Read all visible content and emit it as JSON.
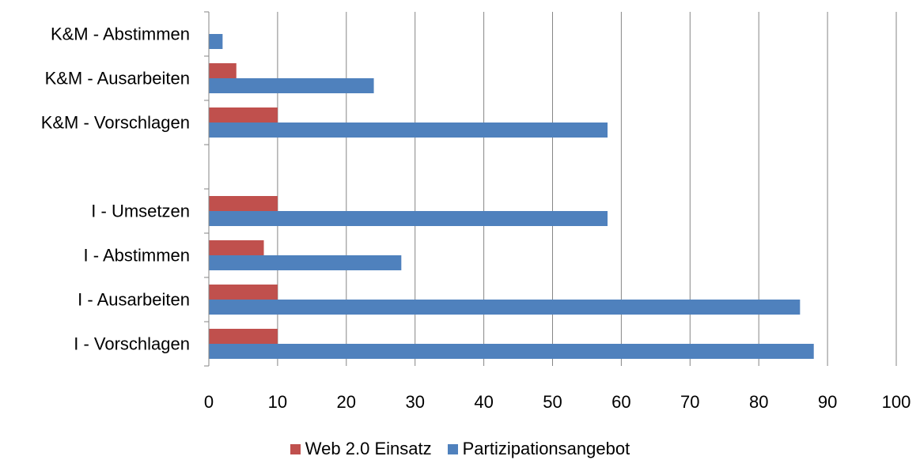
{
  "chart_data": {
    "type": "bar",
    "orientation": "horizontal",
    "categories": [
      "K&M - Abstimmen",
      "K&M - Ausarbeiten",
      "K&M - Vorschlagen",
      "",
      "I - Umsetzen",
      "I - Abstimmen",
      "I - Ausarbeiten",
      "I - Vorschlagen"
    ],
    "series": [
      {
        "name": "Web 2.0 Einsatz",
        "color": "#C0504D",
        "values": [
          0,
          4,
          10,
          null,
          10,
          8,
          10,
          10
        ]
      },
      {
        "name": "Partizipationsangebot",
        "color": "#4F81BD",
        "values": [
          2,
          24,
          58,
          null,
          58,
          28,
          86,
          88
        ]
      }
    ],
    "xlim": [
      0,
      100
    ],
    "xticks": [
      "0",
      "10",
      "20",
      "30",
      "40",
      "50",
      "60",
      "70",
      "80",
      "90",
      "100"
    ],
    "grid": true,
    "legend_position": "bottom"
  }
}
